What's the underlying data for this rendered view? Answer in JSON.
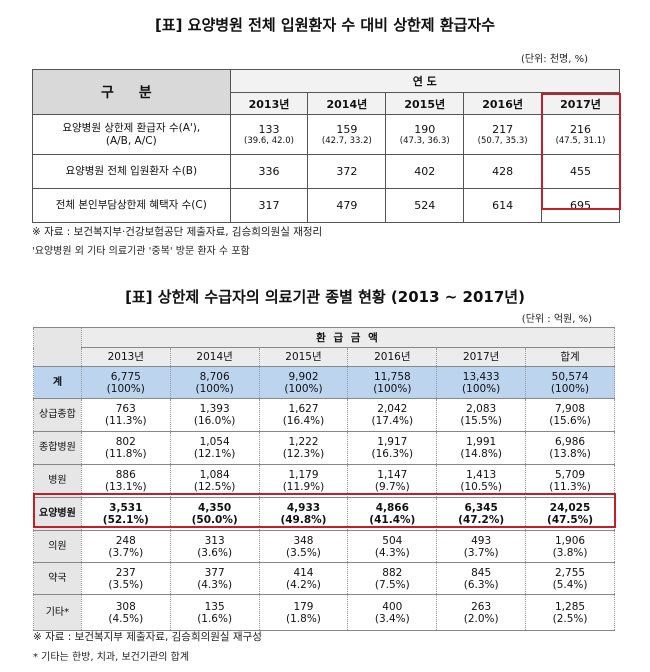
{
  "table1": {
    "title": "[표] 요양병원 전체 입원환자 수 대비 상한제 환급자수",
    "unit": "(단위: 천명, %)",
    "header_label": "구 분",
    "group_header": "연 도",
    "years": [
      "2013년",
      "2014년",
      "2015년",
      "2016년",
      "2017년"
    ],
    "rows": [
      {
        "label": "요양병원 상한제 환급자 수(A'),",
        "label_sub": "(A/B, A/C)",
        "values": [
          {
            "main": "133",
            "sub": "(39.6, 42.0)"
          },
          {
            "main": "159",
            "sub": "(42.7, 33.2)"
          },
          {
            "main": "190",
            "sub": "(47.3, 36.3)"
          },
          {
            "main": "217",
            "sub": "(50.7, 35.3)"
          },
          {
            "main": "216",
            "sub": "(47.5, 31.1)"
          }
        ]
      },
      {
        "label": "요양병원 전체 입원환자 수(B)",
        "label_sub": "",
        "values": [
          {
            "main": "336",
            "sub": ""
          },
          {
            "main": "372",
            "sub": ""
          },
          {
            "main": "402",
            "sub": ""
          },
          {
            "main": "428",
            "sub": ""
          },
          {
            "main": "455",
            "sub": ""
          }
        ]
      },
      {
        "label": "전체 본인부담상한제 혜택자 수(C)",
        "label_sub": "",
        "values": [
          {
            "main": "317",
            "sub": ""
          },
          {
            "main": "479",
            "sub": ""
          },
          {
            "main": "524",
            "sub": ""
          },
          {
            "main": "614",
            "sub": ""
          },
          {
            "main": "695",
            "sub": ""
          }
        ]
      }
    ],
    "notes": [
      "※ 자료 : 보건복지부·건강보험공단 제출자료, 김승희의원실 재정리",
      "'요양병원 외 기타 의료기관 '중복' 방문 환자 수 포함"
    ]
  },
  "table2": {
    "title": "[표] 상한제 수급자의 의료기관 종별 현황 (2013 ~ 2017년)",
    "unit": "(단위 : 억원, %)",
    "group_header": "환 급 금 액",
    "columns": [
      "2013년",
      "2014년",
      "2015년",
      "2016년",
      "2017년",
      "합계"
    ],
    "rows": [
      {
        "label": "계",
        "cells": [
          [
            "6,775",
            "(100%)"
          ],
          [
            "8,706",
            "(100%)"
          ],
          [
            "9,902",
            "(100%)"
          ],
          [
            "11,758",
            "(100%)"
          ],
          [
            "13,433",
            "(100%)"
          ],
          [
            "50,574",
            "(100%)"
          ]
        ]
      },
      {
        "label": "상급종합",
        "cells": [
          [
            "763",
            "(11.3%)"
          ],
          [
            "1,393",
            "(16.0%)"
          ],
          [
            "1,627",
            "(16.4%)"
          ],
          [
            "2,042",
            "(17.4%)"
          ],
          [
            "2,083",
            "(15.5%)"
          ],
          [
            "7,908",
            "(15.6%)"
          ]
        ]
      },
      {
        "label": "종합병원",
        "cells": [
          [
            "802",
            "(11.8%)"
          ],
          [
            "1,054",
            "(12.1%)"
          ],
          [
            "1,222",
            "(12.3%)"
          ],
          [
            "1,917",
            "(16.3%)"
          ],
          [
            "1,991",
            "(14.8%)"
          ],
          [
            "6,986",
            "(13.8%)"
          ]
        ]
      },
      {
        "label": "병원",
        "cells": [
          [
            "886",
            "(13.1%)"
          ],
          [
            "1,084",
            "(12.5%)"
          ],
          [
            "1,179",
            "(11.9%)"
          ],
          [
            "1,147",
            "(9.7%)"
          ],
          [
            "1,413",
            "(10.5%)"
          ],
          [
            "5,709",
            "(11.3%)"
          ]
        ]
      },
      {
        "label": "요양병원",
        "cells": [
          [
            "3,531",
            "(52.1%)"
          ],
          [
            "4,350",
            "(50.0%)"
          ],
          [
            "4,933",
            "(49.8%)"
          ],
          [
            "4,866",
            "(41.4%)"
          ],
          [
            "6,345",
            "(47.2%)"
          ],
          [
            "24,025",
            "(47.5%)"
          ]
        ]
      },
      {
        "label": "의원",
        "cells": [
          [
            "248",
            "(3.7%)"
          ],
          [
            "313",
            "(3.6%)"
          ],
          [
            "348",
            "(3.5%)"
          ],
          [
            "504",
            "(4.3%)"
          ],
          [
            "493",
            "(3.7%)"
          ],
          [
            "1,906",
            "(3.8%)"
          ]
        ]
      },
      {
        "label": "약국",
        "cells": [
          [
            "237",
            "(3.5%)"
          ],
          [
            "377",
            "(4.3%)"
          ],
          [
            "414",
            "(4.2%)"
          ],
          [
            "882",
            "(7.5%)"
          ],
          [
            "845",
            "(6.3%)"
          ],
          [
            "2,755",
            "(5.4%)"
          ]
        ]
      },
      {
        "label": "기타*",
        "cells": [
          [
            "308",
            "(4.5%)"
          ],
          [
            "135",
            "(1.6%)"
          ],
          [
            "179",
            "(1.8%)"
          ],
          [
            "400",
            "(3.4%)"
          ],
          [
            "263",
            "(2.0%)"
          ],
          [
            "1,285",
            "(2.5%)"
          ]
        ]
      }
    ],
    "notes": [
      "※ 자료 : 보건복지부 제출자료, 김승희의원실 재구성",
      "* 기타는 한방, 치과, 보건기관의 합계"
    ]
  },
  "colors": {
    "highlight_border": "#c0202a",
    "total_row_bg": "#bcd4ee",
    "header_bg": "#d9d9d9"
  }
}
